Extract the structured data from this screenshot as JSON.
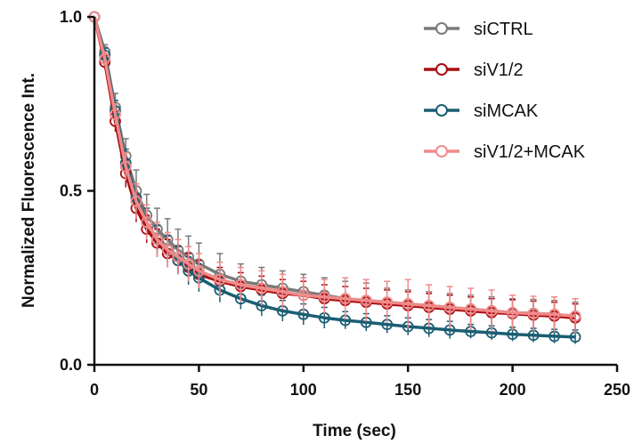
{
  "chart_data": {
    "type": "line",
    "xlabel": "Time (sec)",
    "ylabel": "Normalized Fluorescence Int.",
    "xlim": [
      0,
      250
    ],
    "ylim": [
      0,
      1.0
    ],
    "x_ticks": [
      "0",
      "50",
      "100",
      "150",
      "200",
      "250"
    ],
    "y_ticks": [
      "0.0",
      "0.5",
      "1.0"
    ],
    "grid": false,
    "legend_position": "top-right",
    "x": [
      0,
      5,
      10,
      15,
      20,
      25,
      30,
      35,
      40,
      45,
      50,
      60,
      70,
      80,
      90,
      100,
      110,
      120,
      130,
      140,
      150,
      160,
      170,
      180,
      190,
      200,
      210,
      220,
      230
    ],
    "series": [
      {
        "name": "siCTRL",
        "color": "#7a7a7a",
        "values": [
          1.0,
          0.9,
          0.74,
          0.6,
          0.5,
          0.43,
          0.39,
          0.36,
          0.33,
          0.31,
          0.29,
          0.26,
          0.24,
          0.23,
          0.22,
          0.21,
          0.2,
          0.19,
          0.185,
          0.18,
          0.175,
          0.17,
          0.165,
          0.16,
          0.155,
          0.15,
          0.148,
          0.145,
          0.14
        ],
        "error": [
          0,
          0.02,
          0.04,
          0.05,
          0.06,
          0.06,
          0.06,
          0.06,
          0.06,
          0.06,
          0.06,
          0.06,
          0.05,
          0.05,
          0.05,
          0.05,
          0.05,
          0.05,
          0.05,
          0.04,
          0.04,
          0.04,
          0.04,
          0.04,
          0.04,
          0.04,
          0.04,
          0.04,
          0.04
        ]
      },
      {
        "name": "siV1/2",
        "color": "#a80e12",
        "values": [
          1.0,
          0.87,
          0.7,
          0.55,
          0.45,
          0.39,
          0.35,
          0.32,
          0.3,
          0.28,
          0.26,
          0.24,
          0.225,
          0.215,
          0.205,
          0.2,
          0.19,
          0.185,
          0.18,
          0.175,
          0.17,
          0.165,
          0.16,
          0.155,
          0.15,
          0.147,
          0.143,
          0.14,
          0.135
        ],
        "error": [
          0,
          0.02,
          0.03,
          0.04,
          0.04,
          0.04,
          0.04,
          0.04,
          0.04,
          0.04,
          0.04,
          0.04,
          0.04,
          0.04,
          0.04,
          0.04,
          0.04,
          0.04,
          0.04,
          0.04,
          0.04,
          0.04,
          0.04,
          0.04,
          0.04,
          0.04,
          0.04,
          0.04,
          0.04
        ]
      },
      {
        "name": "siMCAK",
        "color": "#1b5e73",
        "values": [
          1.0,
          0.89,
          0.73,
          0.58,
          0.48,
          0.41,
          0.36,
          0.33,
          0.3,
          0.27,
          0.25,
          0.215,
          0.19,
          0.17,
          0.155,
          0.145,
          0.135,
          0.128,
          0.122,
          0.116,
          0.11,
          0.105,
          0.1,
          0.096,
          0.092,
          0.088,
          0.085,
          0.082,
          0.08
        ],
        "error": [
          0,
          0.02,
          0.03,
          0.04,
          0.04,
          0.04,
          0.04,
          0.04,
          0.04,
          0.04,
          0.04,
          0.035,
          0.03,
          0.03,
          0.03,
          0.03,
          0.03,
          0.025,
          0.025,
          0.025,
          0.025,
          0.025,
          0.025,
          0.02,
          0.02,
          0.02,
          0.02,
          0.02,
          0.02
        ]
      },
      {
        "name": "siV1/2+MCAK",
        "color": "#f08a8a",
        "values": [
          1.0,
          0.88,
          0.72,
          0.57,
          0.47,
          0.41,
          0.36,
          0.33,
          0.31,
          0.29,
          0.27,
          0.245,
          0.23,
          0.22,
          0.21,
          0.2,
          0.195,
          0.19,
          0.185,
          0.18,
          0.175,
          0.17,
          0.165,
          0.16,
          0.155,
          0.15,
          0.147,
          0.145,
          0.14
        ],
        "error": [
          0,
          0.02,
          0.03,
          0.04,
          0.05,
          0.05,
          0.05,
          0.05,
          0.05,
          0.05,
          0.05,
          0.05,
          0.05,
          0.05,
          0.05,
          0.05,
          0.05,
          0.06,
          0.06,
          0.06,
          0.07,
          0.06,
          0.06,
          0.06,
          0.06,
          0.05,
          0.05,
          0.05,
          0.05
        ]
      }
    ]
  }
}
